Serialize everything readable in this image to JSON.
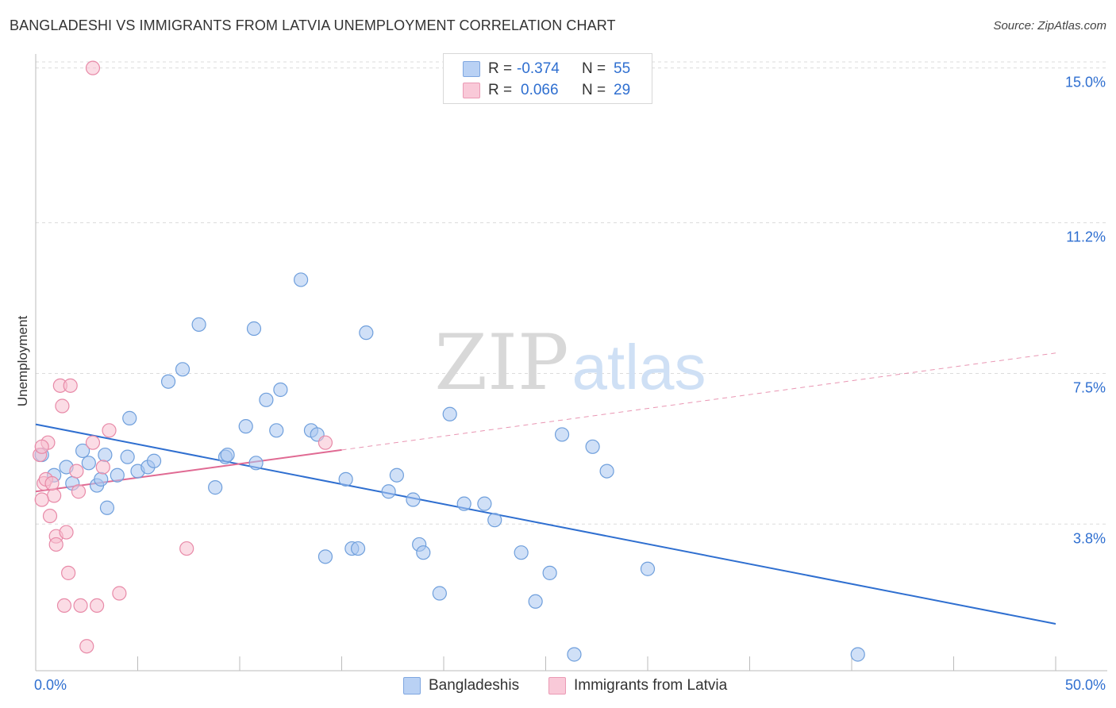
{
  "title": "BANGLADESHI VS IMMIGRANTS FROM LATVIA UNEMPLOYMENT CORRELATION CHART",
  "source": "Source: ZipAtlas.com",
  "watermark": {
    "zip": "ZIP",
    "atlas": "atlas"
  },
  "legend": {
    "rows": [
      {
        "r_label": "R =",
        "r_value": "-0.374",
        "n_label": "N =",
        "n_value": "55"
      },
      {
        "r_label": "R =",
        "r_value": "0.066",
        "n_label": "N =",
        "n_value": "29"
      }
    ]
  },
  "chart_data": {
    "type": "scatter",
    "title": "BANGLADESHI VS IMMIGRANTS FROM LATVIA UNEMPLOYMENT CORRELATION CHART",
    "xlabel": "",
    "ylabel": "Unemployment",
    "xlim": [
      0,
      50
    ],
    "ylim": [
      0.2,
      15.5
    ],
    "x_tick_labels": [
      "0.0%",
      "50.0%"
    ],
    "y_ticks": [
      3.8,
      7.5,
      11.2,
      15.0
    ],
    "y_tick_labels": [
      "3.8%",
      "7.5%",
      "11.2%",
      "15.0%"
    ],
    "grid": true,
    "series": [
      {
        "name": "Bangladeshis",
        "color": "#a9c7f0",
        "stroke": "#6f9fdc",
        "line_color": "#2f6fd0",
        "trend": {
          "x0": 0,
          "y0": 6.25,
          "x1": 50,
          "y1": 1.35,
          "solid_until": 50
        },
        "points": [
          [
            0.3,
            5.5
          ],
          [
            0.9,
            5.0
          ],
          [
            1.5,
            5.2
          ],
          [
            1.8,
            4.8
          ],
          [
            2.3,
            5.6
          ],
          [
            2.6,
            5.3
          ],
          [
            3.0,
            4.75
          ],
          [
            3.5,
            4.2
          ],
          [
            3.2,
            4.9
          ],
          [
            4.0,
            5.0
          ],
          [
            4.6,
            6.4
          ],
          [
            3.4,
            5.5
          ],
          [
            4.5,
            5.45
          ],
          [
            5.0,
            5.1
          ],
          [
            5.5,
            5.2
          ],
          [
            5.8,
            5.35
          ],
          [
            6.5,
            7.3
          ],
          [
            7.2,
            7.6
          ],
          [
            8.0,
            8.7
          ],
          [
            8.8,
            4.7
          ],
          [
            9.3,
            5.45
          ],
          [
            10.3,
            6.2
          ],
          [
            10.7,
            8.6
          ],
          [
            10.8,
            5.3
          ],
          [
            11.3,
            6.85
          ],
          [
            11.8,
            6.1
          ],
          [
            12.0,
            7.1
          ],
          [
            9.4,
            5.5
          ],
          [
            13.0,
            9.8
          ],
          [
            13.5,
            6.1
          ],
          [
            13.8,
            6.0
          ],
          [
            14.2,
            3.0
          ],
          [
            15.2,
            4.9
          ],
          [
            15.5,
            3.2
          ],
          [
            15.8,
            3.2
          ],
          [
            16.2,
            8.5
          ],
          [
            17.3,
            4.6
          ],
          [
            17.7,
            5.0
          ],
          [
            18.5,
            4.4
          ],
          [
            18.8,
            3.3
          ],
          [
            19.0,
            3.1
          ],
          [
            19.8,
            2.1
          ],
          [
            20.3,
            6.5
          ],
          [
            21.0,
            4.3
          ],
          [
            22.0,
            4.3
          ],
          [
            22.5,
            3.9
          ],
          [
            23.8,
            3.1
          ],
          [
            24.5,
            1.9
          ],
          [
            25.2,
            2.6
          ],
          [
            25.8,
            6.0
          ],
          [
            27.3,
            5.7
          ],
          [
            28.0,
            5.1
          ],
          [
            26.4,
            0.6
          ],
          [
            40.3,
            0.6
          ],
          [
            30.0,
            2.7
          ]
        ]
      },
      {
        "name": "Immigrants from Latvia",
        "color": "#f7bfd0",
        "stroke": "#e88aa8",
        "line_color": "#e06a93",
        "trend": {
          "x0": 0,
          "y0": 4.6,
          "x1": 50,
          "y1": 8.0,
          "solid_until": 15.0
        },
        "points": [
          [
            2.8,
            15.0
          ],
          [
            0.2,
            5.5
          ],
          [
            0.4,
            4.8
          ],
          [
            0.6,
            5.8
          ],
          [
            0.9,
            4.5
          ],
          [
            1.3,
            6.7
          ],
          [
            0.3,
            4.4
          ],
          [
            0.7,
            4.0
          ],
          [
            1.0,
            3.5
          ],
          [
            1.5,
            3.6
          ],
          [
            2.0,
            5.1
          ],
          [
            1.6,
            2.6
          ],
          [
            2.2,
            1.8
          ],
          [
            1.4,
            1.8
          ],
          [
            2.5,
            0.8
          ],
          [
            1.2,
            7.2
          ],
          [
            1.7,
            7.2
          ],
          [
            2.1,
            4.6
          ],
          [
            3.0,
            1.8
          ],
          [
            3.3,
            5.2
          ],
          [
            3.6,
            6.1
          ],
          [
            4.1,
            2.1
          ],
          [
            0.3,
            5.7
          ],
          [
            0.5,
            4.9
          ],
          [
            7.4,
            3.2
          ],
          [
            14.2,
            5.8
          ],
          [
            2.8,
            5.8
          ],
          [
            0.8,
            4.8
          ],
          [
            1.0,
            3.3
          ]
        ]
      }
    ]
  }
}
